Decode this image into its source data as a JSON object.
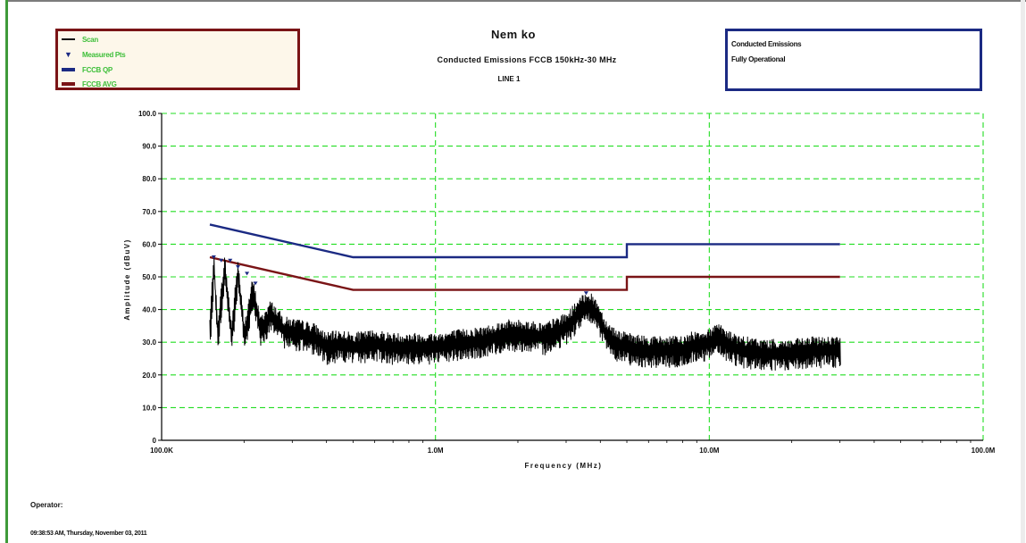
{
  "header": {
    "title": "Nem ko",
    "subtitle": "Conducted Emissions FCCB 150kHz-30 MHz",
    "subtitle2": "LINE 1"
  },
  "legend": {
    "items": [
      {
        "label": "Scan",
        "color": "#111111",
        "style": "line"
      },
      {
        "label": "Measured Pts",
        "color": "#1b2a83",
        "style": "marker"
      },
      {
        "label": "FCCB QP",
        "color": "#1b2a83",
        "style": "bar"
      },
      {
        "label": "FCCB AVG",
        "color": "#7a1416",
        "style": "bar"
      }
    ]
  },
  "info_box": {
    "line1": "Conducted Emissions",
    "line2": "Fully Operational"
  },
  "footer": {
    "operator": "Operator:",
    "timestamp": "09:38:53 AM, Thursday, November 03, 2011"
  },
  "colors": {
    "grid": "#22dd22",
    "qp_limit": "#1b2a83",
    "avg_limit": "#7a1416",
    "scan": "#000000",
    "legend_border": "#7a1416",
    "info_border": "#1b2a83"
  },
  "chart_data": {
    "type": "line",
    "xlabel": "Frequency (MHz)",
    "ylabel": "Amplitude (dBuV)",
    "xscale": "log",
    "xlim": [
      100000,
      100000000
    ],
    "ylim": [
      0,
      100
    ],
    "grid": true,
    "x_ticks": [
      {
        "value": 100000,
        "label": "100.0K"
      },
      {
        "value": 1000000,
        "label": "1.0M"
      },
      {
        "value": 10000000,
        "label": "10.0M"
      },
      {
        "value": 100000000,
        "label": "100.0M"
      }
    ],
    "y_ticks": [
      {
        "value": 0,
        "label": "0"
      },
      {
        "value": 10,
        "label": "10.0"
      },
      {
        "value": 20,
        "label": "20.0"
      },
      {
        "value": 30,
        "label": "30.0"
      },
      {
        "value": 40,
        "label": "40.0"
      },
      {
        "value": 50,
        "label": "50.0"
      },
      {
        "value": 60,
        "label": "60.0"
      },
      {
        "value": 70,
        "label": "70.0"
      },
      {
        "value": 80,
        "label": "80.0"
      },
      {
        "value": 90,
        "label": "90.0"
      },
      {
        "value": 100,
        "label": "100.0"
      }
    ],
    "series": [
      {
        "name": "FCCB QP",
        "color": "#1b2a83",
        "x": [
          150000,
          500000,
          5000000,
          5000000,
          30000000
        ],
        "y": [
          66,
          56,
          56,
          60,
          60
        ]
      },
      {
        "name": "FCCB AVG",
        "color": "#7a1416",
        "x": [
          150000,
          500000,
          5000000,
          5000000,
          30000000
        ],
        "y": [
          56,
          46,
          46,
          50,
          50
        ]
      },
      {
        "name": "Scan",
        "color": "#000000",
        "x": [
          150000,
          155000,
          160000,
          170000,
          180000,
          190000,
          200000,
          215000,
          230000,
          250000,
          280000,
          320000,
          360000,
          400000,
          450000,
          500000,
          600000,
          700000,
          800000,
          900000,
          1000000,
          1200000,
          1500000,
          1800000,
          2100000,
          2500000,
          2800000,
          3000000,
          3300000,
          3600000,
          3900000,
          4200000,
          4600000,
          5000000,
          6000000,
          7000000,
          8000000,
          9000000,
          10000000,
          10700000,
          11500000,
          13000000,
          16000000,
          20000000,
          25000000,
          30000000
        ],
        "y": [
          35,
          55,
          34,
          54,
          33,
          53,
          33,
          47,
          35,
          40,
          35,
          34,
          33,
          30,
          31,
          30,
          31,
          30,
          30,
          30,
          30,
          31,
          32,
          34,
          34,
          33,
          35,
          36,
          40,
          43,
          40,
          34,
          31,
          30,
          29,
          29,
          29,
          31,
          31,
          34,
          31,
          29,
          28,
          28,
          29,
          29
        ]
      },
      {
        "name": "Measured Pts",
        "color": "#1b2a83",
        "x": [
          155000,
          165000,
          178000,
          190000,
          205000,
          220000,
          3550000
        ],
        "y": [
          56,
          55,
          55,
          53,
          51,
          48,
          45
        ]
      }
    ]
  }
}
